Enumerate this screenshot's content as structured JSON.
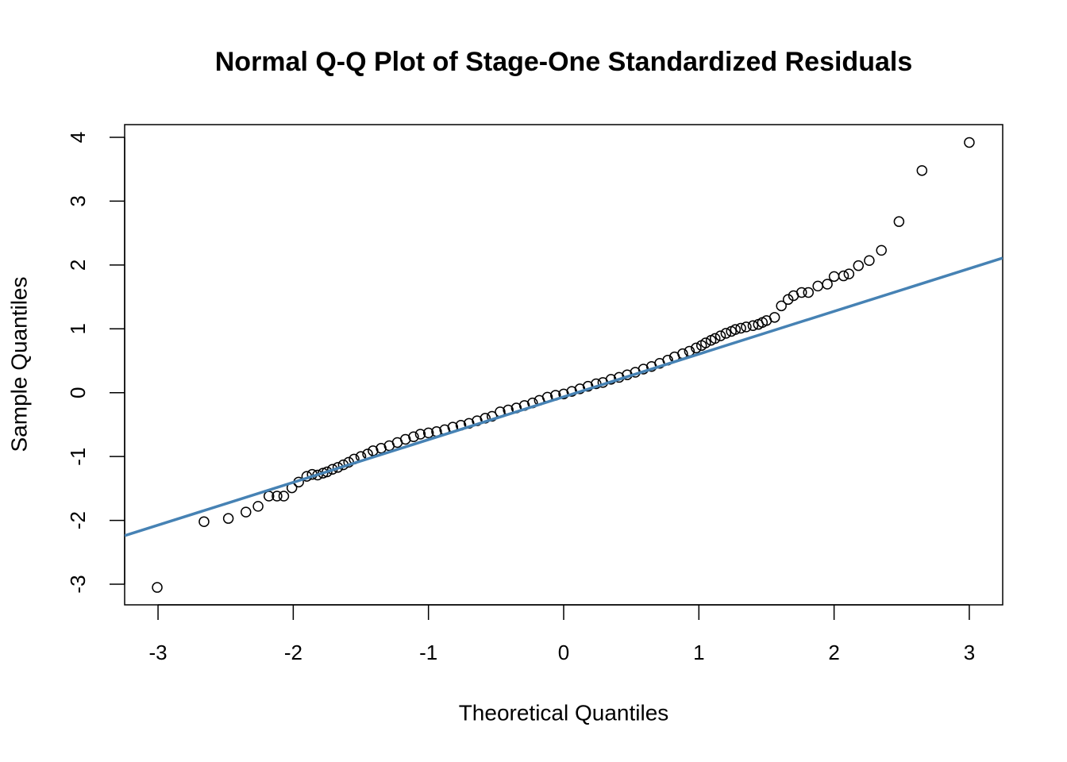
{
  "chart_data": {
    "type": "scatter",
    "title": "Normal Q-Q Plot of Stage-One Standardized Residuals",
    "xlabel": "Theoretical Quantiles",
    "ylabel": "Sample Quantiles",
    "xlim": [
      -3.247,
      3.247
    ],
    "ylim": [
      -3.323,
      4.199
    ],
    "xticks": [
      -3,
      -2,
      -1,
      0,
      1,
      2,
      3
    ],
    "yticks": [
      -3,
      -2,
      -1,
      0,
      1,
      2,
      3,
      4
    ],
    "point_color": "#000000",
    "x": [
      -3.006,
      -2.66,
      -2.48,
      -2.35,
      -2.26,
      -2.18,
      -2.12,
      -2.07,
      -2.01,
      -1.96,
      -1.9,
      -1.86,
      -1.82,
      -1.78,
      -1.75,
      -1.71,
      -1.67,
      -1.63,
      -1.59,
      -1.55,
      -1.5,
      -1.45,
      -1.41,
      -1.35,
      -1.29,
      -1.23,
      -1.17,
      -1.11,
      -1.06,
      -1.0,
      -0.94,
      -0.88,
      -0.82,
      -0.76,
      -0.7,
      -0.64,
      -0.58,
      -0.53,
      -0.47,
      -0.41,
      -0.35,
      -0.29,
      -0.23,
      -0.18,
      -0.12,
      -0.06,
      0.0,
      0.06,
      0.12,
      0.18,
      0.24,
      0.29,
      0.35,
      0.41,
      0.47,
      0.53,
      0.59,
      0.65,
      0.71,
      0.77,
      0.82,
      0.88,
      0.93,
      0.98,
      1.02,
      1.05,
      1.09,
      1.12,
      1.16,
      1.2,
      1.24,
      1.27,
      1.31,
      1.35,
      1.4,
      1.44,
      1.47,
      1.5,
      1.56,
      1.61,
      1.66,
      1.7,
      1.76,
      1.81,
      1.88,
      1.95,
      2.0,
      2.07,
      2.11,
      2.18,
      2.26,
      2.35,
      2.48,
      2.65,
      3.0
    ],
    "values": [
      -3.05,
      -2.02,
      -1.97,
      -1.87,
      -1.78,
      -1.62,
      -1.62,
      -1.62,
      -1.49,
      -1.4,
      -1.31,
      -1.28,
      -1.29,
      -1.26,
      -1.24,
      -1.2,
      -1.17,
      -1.13,
      -1.09,
      -1.04,
      -1.0,
      -0.96,
      -0.91,
      -0.87,
      -0.83,
      -0.78,
      -0.73,
      -0.69,
      -0.65,
      -0.63,
      -0.61,
      -0.58,
      -0.54,
      -0.51,
      -0.48,
      -0.44,
      -0.4,
      -0.37,
      -0.3,
      -0.27,
      -0.24,
      -0.2,
      -0.16,
      -0.12,
      -0.07,
      -0.04,
      -0.02,
      0.02,
      0.06,
      0.1,
      0.14,
      0.16,
      0.21,
      0.24,
      0.28,
      0.32,
      0.37,
      0.41,
      0.46,
      0.51,
      0.56,
      0.61,
      0.65,
      0.7,
      0.74,
      0.78,
      0.82,
      0.85,
      0.89,
      0.93,
      0.96,
      0.99,
      1.01,
      1.03,
      1.05,
      1.07,
      1.1,
      1.13,
      1.18,
      1.36,
      1.46,
      1.52,
      1.57,
      1.57,
      1.67,
      1.7,
      1.82,
      1.83,
      1.86,
      1.99,
      2.07,
      2.23,
      2.68,
      3.48,
      3.92
    ],
    "reference_line": {
      "color": "#4682b4",
      "x": [
        -3.247,
        3.247
      ],
      "values": [
        -2.24,
        2.11
      ]
    }
  }
}
